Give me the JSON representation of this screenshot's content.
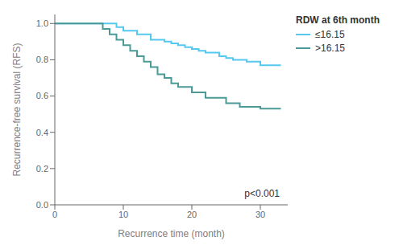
{
  "chart_data": {
    "type": "line",
    "line_style": "step",
    "xlabel": "Recurrence time (month)",
    "ylabel": "Recurrence-free survival (RFS)",
    "legend_title": "RDW at 6th month",
    "legend": "right",
    "annotation": "p<0.001",
    "grid": false,
    "xlim": [
      0,
      34
    ],
    "ylim": [
      0,
      1.05
    ],
    "xticks": [
      0,
      10,
      20,
      30
    ],
    "yticks": [
      {
        "value": 0.0,
        "label": "0.0"
      },
      0.2,
      0.4,
      0.6,
      0.8,
      {
        "value": 1.0,
        "label": "1.0"
      }
    ],
    "series": [
      {
        "name": "≤16.15",
        "color": "#55c8f0",
        "x": [
          0,
          9,
          9,
          10,
          10,
          12,
          12,
          14,
          14,
          16,
          16,
          17,
          17,
          18,
          18,
          19,
          19,
          20,
          20,
          21,
          21,
          22,
          22,
          24,
          24,
          25,
          25,
          26,
          26,
          28,
          28,
          30,
          30,
          33,
          33
        ],
        "values": [
          1.0,
          1.0,
          0.98,
          0.98,
          0.96,
          0.96,
          0.94,
          0.94,
          0.91,
          0.91,
          0.9,
          0.9,
          0.89,
          0.89,
          0.88,
          0.88,
          0.87,
          0.87,
          0.86,
          0.86,
          0.85,
          0.85,
          0.84,
          0.84,
          0.82,
          0.82,
          0.81,
          0.81,
          0.8,
          0.8,
          0.79,
          0.79,
          0.77,
          0.77,
          0.77
        ]
      },
      {
        "name": ">16.15",
        "color": "#4a9a96",
        "x": [
          0,
          7,
          7,
          8,
          8,
          9,
          9,
          10,
          10,
          11,
          11,
          12,
          12,
          13,
          13,
          14,
          14,
          15,
          15,
          16,
          16,
          17,
          17,
          18,
          18,
          20,
          20,
          22,
          22,
          25,
          25,
          27,
          27,
          30,
          30,
          33,
          33
        ],
        "values": [
          1.0,
          1.0,
          0.97,
          0.97,
          0.94,
          0.94,
          0.91,
          0.91,
          0.88,
          0.88,
          0.85,
          0.85,
          0.82,
          0.82,
          0.79,
          0.79,
          0.76,
          0.76,
          0.72,
          0.72,
          0.7,
          0.7,
          0.67,
          0.67,
          0.65,
          0.65,
          0.62,
          0.62,
          0.59,
          0.59,
          0.56,
          0.56,
          0.54,
          0.54,
          0.53,
          0.53,
          0.53
        ]
      }
    ]
  }
}
